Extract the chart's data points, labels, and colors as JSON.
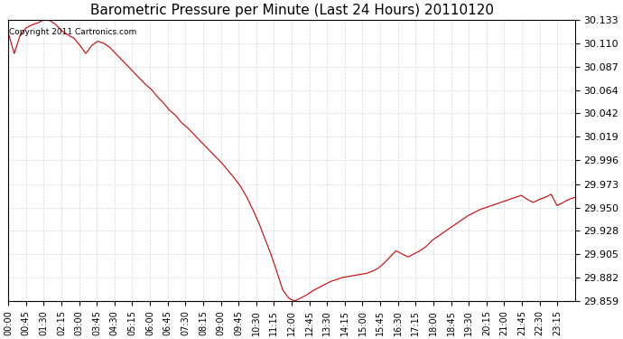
{
  "title": "Barometric Pressure per Minute (Last 24 Hours) 20110120",
  "copyright_text": "Copyright 2011 Cartronics.com",
  "line_color": "#cc0000",
  "background_color": "#ffffff",
  "grid_color": "#cccccc",
  "yticks": [
    29.859,
    29.882,
    29.905,
    29.928,
    29.95,
    29.973,
    29.996,
    30.019,
    30.042,
    30.064,
    30.087,
    30.11,
    30.133
  ],
  "ylim": [
    29.859,
    30.133
  ],
  "xtick_labels": [
    "00:00",
    "00:45",
    "01:30",
    "02:15",
    "03:00",
    "03:45",
    "04:30",
    "05:15",
    "06:00",
    "06:45",
    "07:30",
    "08:15",
    "09:00",
    "09:45",
    "10:30",
    "11:15",
    "12:00",
    "12:45",
    "13:30",
    "14:15",
    "15:00",
    "15:45",
    "16:30",
    "17:15",
    "18:00",
    "18:45",
    "19:30",
    "20:15",
    "21:00",
    "21:45",
    "22:30",
    "23:15"
  ],
  "pressure_data": [
    30.12,
    30.1,
    30.118,
    30.125,
    30.128,
    30.13,
    30.133,
    30.132,
    30.128,
    30.122,
    30.118,
    30.115,
    30.108,
    30.1,
    30.108,
    30.112,
    30.11,
    30.106,
    30.1,
    30.094,
    30.088,
    30.082,
    30.076,
    30.07,
    30.065,
    30.058,
    30.052,
    30.045,
    30.04,
    30.033,
    30.028,
    30.022,
    30.016,
    30.01,
    30.004,
    29.998,
    29.992,
    29.985,
    29.978,
    29.97,
    29.96,
    29.948,
    29.935,
    29.92,
    29.905,
    29.888,
    29.87,
    29.862,
    29.859,
    29.862,
    29.865,
    29.869,
    29.872,
    29.875,
    29.878,
    29.88,
    29.882,
    29.883,
    29.884,
    29.885,
    29.886,
    29.888,
    29.891,
    29.896,
    29.902,
    29.908,
    29.905,
    29.902,
    29.905,
    29.908,
    29.912,
    29.918,
    29.922,
    29.926,
    29.93,
    29.934,
    29.938,
    29.942,
    29.945,
    29.948,
    29.95,
    29.952,
    29.954,
    29.956,
    29.958,
    29.96,
    29.962,
    29.958,
    29.955,
    29.958,
    29.96,
    29.963,
    29.952,
    29.955,
    29.958,
    29.96
  ]
}
